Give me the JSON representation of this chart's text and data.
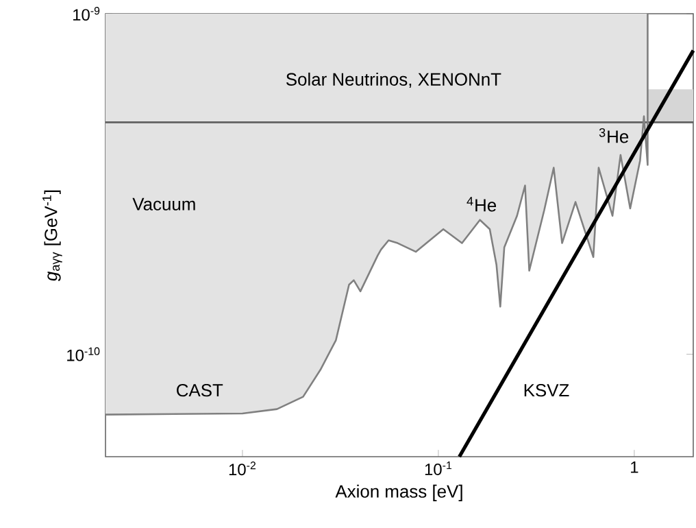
{
  "chart_data": {
    "type": "line",
    "xlabel": "Axion mass  [eV]",
    "ylabel": "*g*$_{aγγ}$  [GeV$^{-1}$]",
    "log": "xy",
    "xlim": [
      0.002,
      2
    ],
    "ylim": [
      5e-11,
      1e-09
    ],
    "xticks": [
      {
        "value": 0.01,
        "label": "10$^{-2}$"
      },
      {
        "value": 0.1,
        "label": "10$^{-1}$"
      },
      {
        "value": 1,
        "label": "1"
      }
    ],
    "yticks": [
      {
        "value": 1e-10,
        "label": "10$^{-10}$"
      },
      {
        "value": 1e-09,
        "label": "10$^{-9}$"
      }
    ],
    "series": [
      {
        "color": "#808080",
        "x": [
          0.002,
          0.01,
          0.015,
          0.0204,
          0.025,
          0.03,
          0.035,
          0.037,
          0.04,
          0.049,
          0.051,
          0.0557,
          0.062,
          0.0767,
          0.106,
          0.132,
          0.163,
          0.183,
          0.198,
          0.207,
          0.217,
          0.252,
          0.277,
          0.291,
          0.347,
          0.388,
          0.428,
          0.501,
          0.618,
          0.658,
          0.774,
          0.851,
          0.953,
          1.07,
          1.12,
          1.17,
          1.17
        ],
        "values": [
          6.65e-11,
          6.7e-11,
          6.9e-11,
          7.5e-11,
          9e-11,
          1.1e-10,
          1.6e-10,
          1.65e-10,
          1.53e-10,
          1.95e-10,
          2.03e-10,
          2.16e-10,
          2.12e-10,
          2e-10,
          2.33e-10,
          2.12e-10,
          2.48e-10,
          2.33e-10,
          1.83e-10,
          1.38e-10,
          2.06e-10,
          2.55e-10,
          3.13e-10,
          1.76e-10,
          2.65e-10,
          3.53e-10,
          2.12e-10,
          2.8e-10,
          1.93e-10,
          3.53e-10,
          2.55e-10,
          3.85e-10,
          2.68e-10,
          3.7e-10,
          5e-10,
          3.6e-10,
          1e-09
        ],
        "lower": [
          6.65e-11,
          6.7e-11,
          6.9e-11,
          7.5e-11,
          9e-11,
          1.1e-10,
          1.6e-10,
          1.65e-10,
          1.53e-10,
          1.95e-10,
          2.03e-10,
          2.16e-10,
          2.12e-10,
          2e-10,
          2.33e-10,
          2.12e-10,
          2.48e-10,
          2.33e-10,
          1.83e-10,
          1.38e-10,
          2.06e-10,
          2.55e-10,
          3.13e-10,
          1.76e-10,
          2.65e-10,
          3.53e-10,
          2.12e-10,
          2.8e-10,
          1.93e-10,
          3.53e-10,
          2.55e-10,
          3.85e-10,
          2.68e-10,
          3.7e-10,
          5e-10,
          3.6e-10,
          1e-09
        ],
        "upper": [
          1e-09,
          1e-09,
          1e-09,
          1e-09,
          1e-09,
          1e-09,
          1e-09,
          1e-09,
          1e-09,
          1e-09,
          1e-09,
          1e-09,
          1e-09,
          1e-09,
          1e-09,
          1e-09,
          1e-09,
          1e-09,
          1e-09,
          1e-09,
          1e-09,
          1e-09,
          1e-09,
          1e-09,
          1e-09,
          1e-09,
          1e-09,
          1e-09,
          1e-09,
          1e-09,
          1e-09,
          1e-09,
          1e-09,
          1e-09,
          1e-09,
          1e-09,
          1e-09
        ]
      },
      {
        "color": "#000000",
        "x": [
          0.128,
          2
        ],
        "values": [
          5e-11,
          7.8e-10
        ]
      }
    ],
    "bands": [
      {
        "axis": "y",
        "from": 4.8e-10,
        "to": 6e-10,
        "color": "#d6d6d6"
      }
    ],
    "ref_lines": [
      {
        "axis": "y",
        "value": 4.8e-10,
        "color": "#606060"
      }
    ],
    "annotations": [
      "Solar Neutrinos,  XENONnT",
      "Vacuum",
      "$^{4}$He",
      "$^{3}$He",
      "CAST",
      "KSVZ"
    ]
  }
}
